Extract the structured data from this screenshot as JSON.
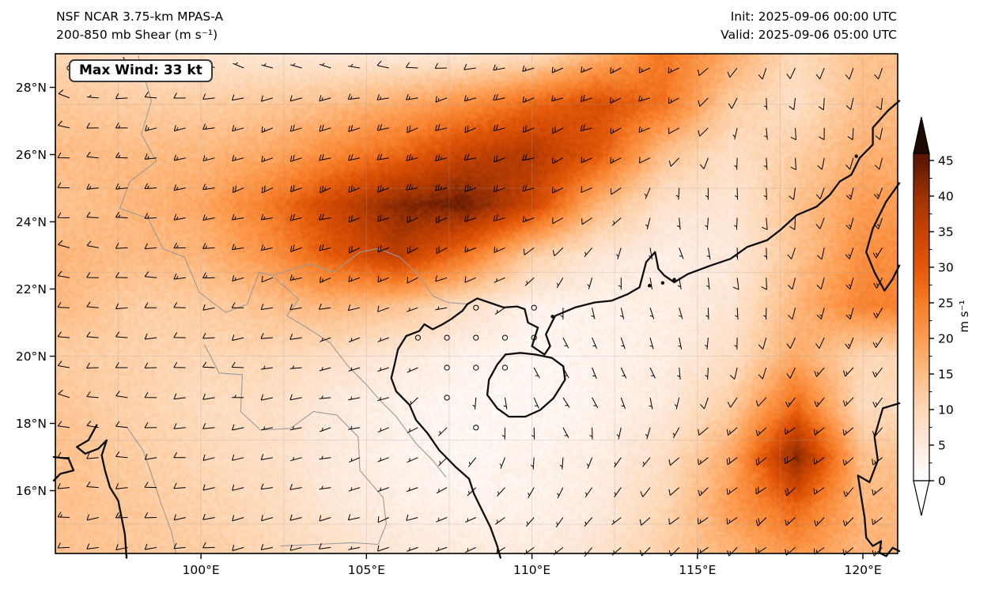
{
  "figure": {
    "title_line1": "NSF NCAR 3.75-km MPAS-A",
    "title_line2": "200-850 mb Shear (m s⁻¹)",
    "init_line": "Init: 2025-09-06 00:00 UTC",
    "valid_line": "Valid: 2025-09-06 05:00 UTC",
    "max_wind_label": "Max Wind: 33 kt"
  },
  "chart_data": {
    "type": "heatmap",
    "title": "NSF NCAR 3.75-km MPAS-A — 200-850 mb Shear (m s⁻¹)",
    "field": "200-850 mb vertical wind shear magnitude with wind barbs (kt), calm shown as open circles",
    "init_time": "2025-09-06 00:00 UTC",
    "valid_time": "2025-09-06 05:00 UTC",
    "max_wind_kt": 33,
    "axes": {
      "extent": {
        "lon_min": 95.6,
        "lon_max": 121.05,
        "lat_min": 14.13,
        "lat_max": 29.0
      },
      "x_ticks": [
        100,
        105,
        110,
        115,
        120
      ],
      "x_tick_labels": [
        "100°E",
        "105°E",
        "110°E",
        "115°E",
        "120°E"
      ],
      "y_ticks": [
        16,
        18,
        20,
        22,
        24,
        26,
        28
      ],
      "y_tick_labels": [
        "16°N",
        "18°N",
        "20°N",
        "22°N",
        "24°N",
        "26°N",
        "28°N"
      ],
      "grid_interval_deg": 2.5
    },
    "colorbar": {
      "unit": "m s⁻¹",
      "ticks": [
        0,
        5,
        10,
        15,
        20,
        25,
        30,
        35,
        40,
        45
      ],
      "minor_tick_interval": 2.5,
      "max_value": 46,
      "extend": "both",
      "stops": [
        [
          0,
          "#ffffff"
        ],
        [
          5,
          "#fdeadd"
        ],
        [
          10,
          "#fdd8b6"
        ],
        [
          15,
          "#fdbd86"
        ],
        [
          20,
          "#fd9c51"
        ],
        [
          25,
          "#f67d28"
        ],
        [
          30,
          "#e35709"
        ],
        [
          35,
          "#c64302"
        ],
        [
          40,
          "#9d3203"
        ],
        [
          45,
          "#5e1703"
        ],
        [
          50,
          "#1f0a02"
        ]
      ]
    },
    "shear_grid": {
      "units": "m/s",
      "lons": [
        96,
        98,
        100,
        102,
        104,
        106,
        108,
        110,
        112,
        114,
        116,
        118,
        120
      ],
      "lats": [
        29,
        27.5,
        26,
        24.5,
        23,
        21.5,
        20,
        18.5,
        17,
        15.5,
        14
      ],
      "values_ms": [
        [
          10,
          8,
          7,
          6,
          5,
          5,
          6,
          8,
          16,
          26,
          18,
          9,
          14
        ],
        [
          13,
          12,
          12,
          13,
          15,
          18,
          22,
          28,
          32,
          26,
          12,
          8,
          15
        ],
        [
          15,
          15,
          16,
          18,
          23,
          28,
          35,
          38,
          30,
          14,
          8,
          12,
          17
        ],
        [
          14,
          16,
          18,
          25,
          34,
          42,
          44,
          34,
          16,
          7,
          6,
          14,
          20
        ],
        [
          16,
          15,
          16,
          21,
          30,
          36,
          26,
          12,
          6,
          4,
          5,
          14,
          22
        ],
        [
          15,
          12,
          12,
          14,
          16,
          14,
          8,
          3,
          3,
          4,
          6,
          16,
          24
        ],
        [
          12,
          11,
          10,
          10,
          8,
          5,
          3,
          2,
          3,
          4,
          8,
          18,
          10
        ],
        [
          13,
          11,
          9,
          8,
          5,
          3,
          2,
          2,
          3,
          5,
          12,
          28,
          9
        ],
        [
          14,
          12,
          10,
          8,
          5,
          3,
          2,
          3,
          4,
          8,
          18,
          42,
          14
        ],
        [
          14,
          13,
          11,
          9,
          6,
          4,
          3,
          3,
          5,
          10,
          20,
          28,
          16
        ],
        [
          14,
          13,
          12,
          10,
          8,
          6,
          5,
          5,
          7,
          12,
          16,
          20,
          16
        ]
      ]
    },
    "wind_barbs": {
      "units": "kt",
      "calm_threshold_kt": 2.5,
      "grid_lons": [
        96,
        99,
        102,
        105,
        108,
        111,
        114,
        117,
        120
      ],
      "grid_lats": [
        29,
        27,
        25,
        23,
        21,
        19,
        17,
        15
      ],
      "dir_speed_kt": [
        [
          [
            50,
            5
          ],
          [
            20,
            3
          ],
          [
            350,
            3
          ],
          [
            320,
            5
          ],
          [
            280,
            8
          ],
          [
            255,
            14
          ],
          [
            245,
            18
          ],
          [
            200,
            8
          ],
          [
            205,
            12
          ]
        ],
        [
          [
            275,
            12
          ],
          [
            260,
            14
          ],
          [
            252,
            16
          ],
          [
            250,
            19
          ],
          [
            248,
            22
          ],
          [
            247,
            20
          ],
          [
            250,
            14
          ],
          [
            170,
            7
          ],
          [
            185,
            11
          ]
        ],
        [
          [
            272,
            12
          ],
          [
            258,
            15
          ],
          [
            252,
            19
          ],
          [
            253,
            24
          ],
          [
            258,
            24
          ],
          [
            250,
            16
          ],
          [
            190,
            5
          ],
          [
            175,
            7
          ],
          [
            200,
            13
          ]
        ],
        [
          [
            288,
            10
          ],
          [
            268,
            12
          ],
          [
            256,
            15
          ],
          [
            250,
            19
          ],
          [
            244,
            16
          ],
          [
            225,
            7
          ],
          [
            160,
            5
          ],
          [
            178,
            7
          ],
          [
            205,
            15
          ]
        ],
        [
          [
            272,
            10
          ],
          [
            268,
            10
          ],
          [
            262,
            9
          ],
          [
            252,
            7
          ],
          [
            0,
            2
          ],
          [
            150,
            4
          ],
          [
            160,
            5
          ],
          [
            182,
            8
          ],
          [
            202,
            16
          ]
        ],
        [
          [
            282,
            10
          ],
          [
            270,
            10
          ],
          [
            263,
            8
          ],
          [
            258,
            5
          ],
          [
            185,
            3
          ],
          [
            140,
            4
          ],
          [
            165,
            5
          ],
          [
            212,
            11
          ],
          [
            222,
            17
          ]
        ],
        [
          [
            270,
            12
          ],
          [
            265,
            10
          ],
          [
            258,
            8
          ],
          [
            252,
            6
          ],
          [
            220,
            3
          ],
          [
            175,
            3
          ],
          [
            222,
            8
          ],
          [
            238,
            22
          ],
          [
            225,
            14
          ]
        ],
        [
          [
            265,
            12
          ],
          [
            263,
            12
          ],
          [
            258,
            10
          ],
          [
            253,
            8
          ],
          [
            242,
            6
          ],
          [
            225,
            5
          ],
          [
            228,
            10
          ],
          [
            232,
            17
          ],
          [
            225,
            13
          ]
        ]
      ]
    }
  },
  "geo": {
    "coastlines": [
      [
        [
          108.05,
          21.55
        ],
        [
          108.35,
          21.72
        ],
        [
          108.7,
          21.6
        ],
        [
          109.15,
          21.45
        ],
        [
          109.55,
          21.48
        ],
        [
          109.78,
          21.4
        ],
        [
          109.88,
          21.0
        ],
        [
          110.18,
          20.85
        ],
        [
          110.0,
          20.3
        ],
        [
          110.38,
          20.05
        ],
        [
          110.55,
          20.3
        ],
        [
          110.42,
          20.65
        ],
        [
          110.7,
          21.2
        ],
        [
          111.3,
          21.45
        ],
        [
          111.9,
          21.6
        ],
        [
          112.4,
          21.65
        ],
        [
          112.9,
          21.85
        ],
        [
          113.25,
          22.05
        ],
        [
          113.45,
          22.8
        ],
        [
          113.72,
          23.1
        ],
        [
          113.82,
          22.6
        ],
        [
          114.0,
          22.4
        ],
        [
          114.3,
          22.2
        ],
        [
          114.72,
          22.45
        ],
        [
          115.4,
          22.7
        ],
        [
          116.0,
          22.9
        ],
        [
          116.5,
          23.25
        ],
        [
          117.1,
          23.45
        ],
        [
          117.5,
          23.75
        ],
        [
          118.0,
          24.2
        ],
        [
          118.6,
          24.45
        ],
        [
          119.0,
          24.8
        ],
        [
          119.3,
          25.2
        ],
        [
          119.65,
          25.4
        ],
        [
          119.9,
          25.9
        ],
        [
          120.3,
          26.3
        ],
        [
          120.3,
          26.8
        ],
        [
          120.75,
          27.3
        ],
        [
          121.1,
          27.6
        ]
      ],
      [
        [
          108.05,
          21.55
        ],
        [
          107.9,
          21.35
        ],
        [
          107.55,
          21.1
        ],
        [
          107.3,
          20.95
        ],
        [
          107.0,
          20.8
        ],
        [
          106.75,
          20.95
        ],
        [
          106.6,
          20.75
        ],
        [
          106.2,
          20.6
        ],
        [
          105.95,
          20.2
        ],
        [
          105.85,
          19.75
        ],
        [
          105.75,
          19.35
        ],
        [
          105.9,
          18.95
        ],
        [
          106.3,
          18.55
        ],
        [
          106.5,
          18.1
        ],
        [
          106.85,
          17.7
        ],
        [
          107.2,
          17.2
        ],
        [
          107.7,
          16.7
        ],
        [
          108.1,
          16.35
        ],
        [
          108.25,
          15.9
        ],
        [
          108.5,
          15.4
        ],
        [
          108.75,
          14.9
        ],
        [
          108.95,
          14.35
        ],
        [
          109.05,
          14.0
        ]
      ],
      [
        [
          109.2,
          20.05
        ],
        [
          109.65,
          20.1
        ],
        [
          110.1,
          20.05
        ],
        [
          110.6,
          19.95
        ],
        [
          110.95,
          19.7
        ],
        [
          111.0,
          19.3
        ],
        [
          110.65,
          18.75
        ],
        [
          110.25,
          18.4
        ],
        [
          109.8,
          18.2
        ],
        [
          109.3,
          18.2
        ],
        [
          108.95,
          18.45
        ],
        [
          108.65,
          18.85
        ],
        [
          108.7,
          19.3
        ],
        [
          108.95,
          19.75
        ],
        [
          109.2,
          20.05
        ]
      ],
      [
        [
          95.55,
          17.0
        ],
        [
          96.0,
          16.95
        ],
        [
          96.15,
          16.6
        ],
        [
          95.75,
          16.5
        ],
        [
          95.55,
          16.3
        ]
      ],
      [
        [
          96.85,
          17.95
        ],
        [
          96.6,
          17.5
        ],
        [
          96.25,
          17.3
        ],
        [
          96.5,
          17.1
        ],
        [
          96.9,
          17.25
        ],
        [
          97.15,
          17.5
        ],
        [
          97.0,
          17.05
        ],
        [
          97.1,
          16.6
        ],
        [
          97.25,
          16.1
        ],
        [
          97.5,
          15.7
        ],
        [
          97.6,
          15.2
        ],
        [
          97.7,
          14.7
        ],
        [
          97.75,
          14.0
        ]
      ],
      [
        [
          121.1,
          25.15
        ],
        [
          120.7,
          24.6
        ],
        [
          120.3,
          23.8
        ],
        [
          120.1,
          23.1
        ],
        [
          120.35,
          22.5
        ],
        [
          120.65,
          21.95
        ],
        [
          120.9,
          22.3
        ],
        [
          121.1,
          22.7
        ]
      ],
      [
        [
          121.1,
          18.6
        ],
        [
          120.6,
          18.45
        ],
        [
          120.35,
          17.6
        ],
        [
          120.45,
          16.9
        ],
        [
          120.2,
          16.25
        ],
        [
          119.85,
          16.45
        ],
        [
          119.95,
          15.8
        ],
        [
          120.05,
          15.2
        ],
        [
          120.1,
          14.6
        ],
        [
          120.3,
          14.35
        ],
        [
          120.55,
          14.5
        ],
        [
          120.5,
          14.15
        ],
        [
          120.7,
          14.05
        ],
        [
          120.9,
          14.3
        ],
        [
          121.1,
          14.2
        ]
      ]
    ],
    "islands": [
      [
        113.95,
        22.18
      ],
      [
        114.3,
        22.28
      ],
      [
        113.55,
        22.1
      ],
      [
        110.62,
        21.18
      ],
      [
        119.8,
        25.95
      ]
    ],
    "borders": [
      [
        [
          102.15,
          22.4
        ],
        [
          102.8,
          22.6
        ],
        [
          103.3,
          22.75
        ],
        [
          104.0,
          22.5
        ],
        [
          104.8,
          23.1
        ],
        [
          105.35,
          23.2
        ],
        [
          106.0,
          22.95
        ],
        [
          106.55,
          22.45
        ],
        [
          107.0,
          21.8
        ],
        [
          107.45,
          21.6
        ],
        [
          108.05,
          21.55
        ]
      ],
      [
        [
          102.15,
          22.4
        ],
        [
          102.95,
          21.7
        ],
        [
          102.6,
          21.2
        ],
        [
          103.2,
          20.85
        ],
        [
          103.9,
          20.4
        ],
        [
          104.45,
          19.7
        ],
        [
          104.95,
          19.2
        ],
        [
          105.4,
          18.7
        ],
        [
          105.9,
          18.2
        ],
        [
          106.5,
          17.4
        ],
        [
          107.0,
          16.9
        ],
        [
          107.4,
          16.4
        ]
      ],
      [
        [
          98.1,
          28.95
        ],
        [
          98.5,
          27.6
        ],
        [
          98.2,
          26.6
        ],
        [
          98.65,
          25.8
        ],
        [
          97.85,
          25.2
        ],
        [
          97.55,
          24.4
        ],
        [
          98.4,
          24.1
        ],
        [
          98.85,
          23.2
        ],
        [
          99.5,
          22.95
        ],
        [
          99.95,
          21.9
        ],
        [
          100.75,
          21.3
        ],
        [
          101.4,
          21.55
        ],
        [
          101.75,
          22.5
        ],
        [
          102.15,
          22.4
        ]
      ],
      [
        [
          100.1,
          20.35
        ],
        [
          100.55,
          19.5
        ],
        [
          101.25,
          19.45
        ],
        [
          101.2,
          18.35
        ],
        [
          101.8,
          17.8
        ],
        [
          102.7,
          17.85
        ],
        [
          103.4,
          18.35
        ],
        [
          104.1,
          18.25
        ],
        [
          104.75,
          17.6
        ],
        [
          104.8,
          16.6
        ],
        [
          105.5,
          15.8
        ],
        [
          105.6,
          15.0
        ],
        [
          105.35,
          14.4
        ]
      ],
      [
        [
          97.75,
          17.9
        ],
        [
          98.25,
          17.2
        ],
        [
          98.5,
          16.5
        ],
        [
          98.8,
          15.6
        ],
        [
          99.1,
          14.8
        ],
        [
          99.25,
          14.13
        ]
      ],
      [
        [
          102.4,
          14.35
        ],
        [
          103.5,
          14.4
        ],
        [
          104.6,
          14.45
        ],
        [
          105.35,
          14.4
        ]
      ]
    ]
  }
}
